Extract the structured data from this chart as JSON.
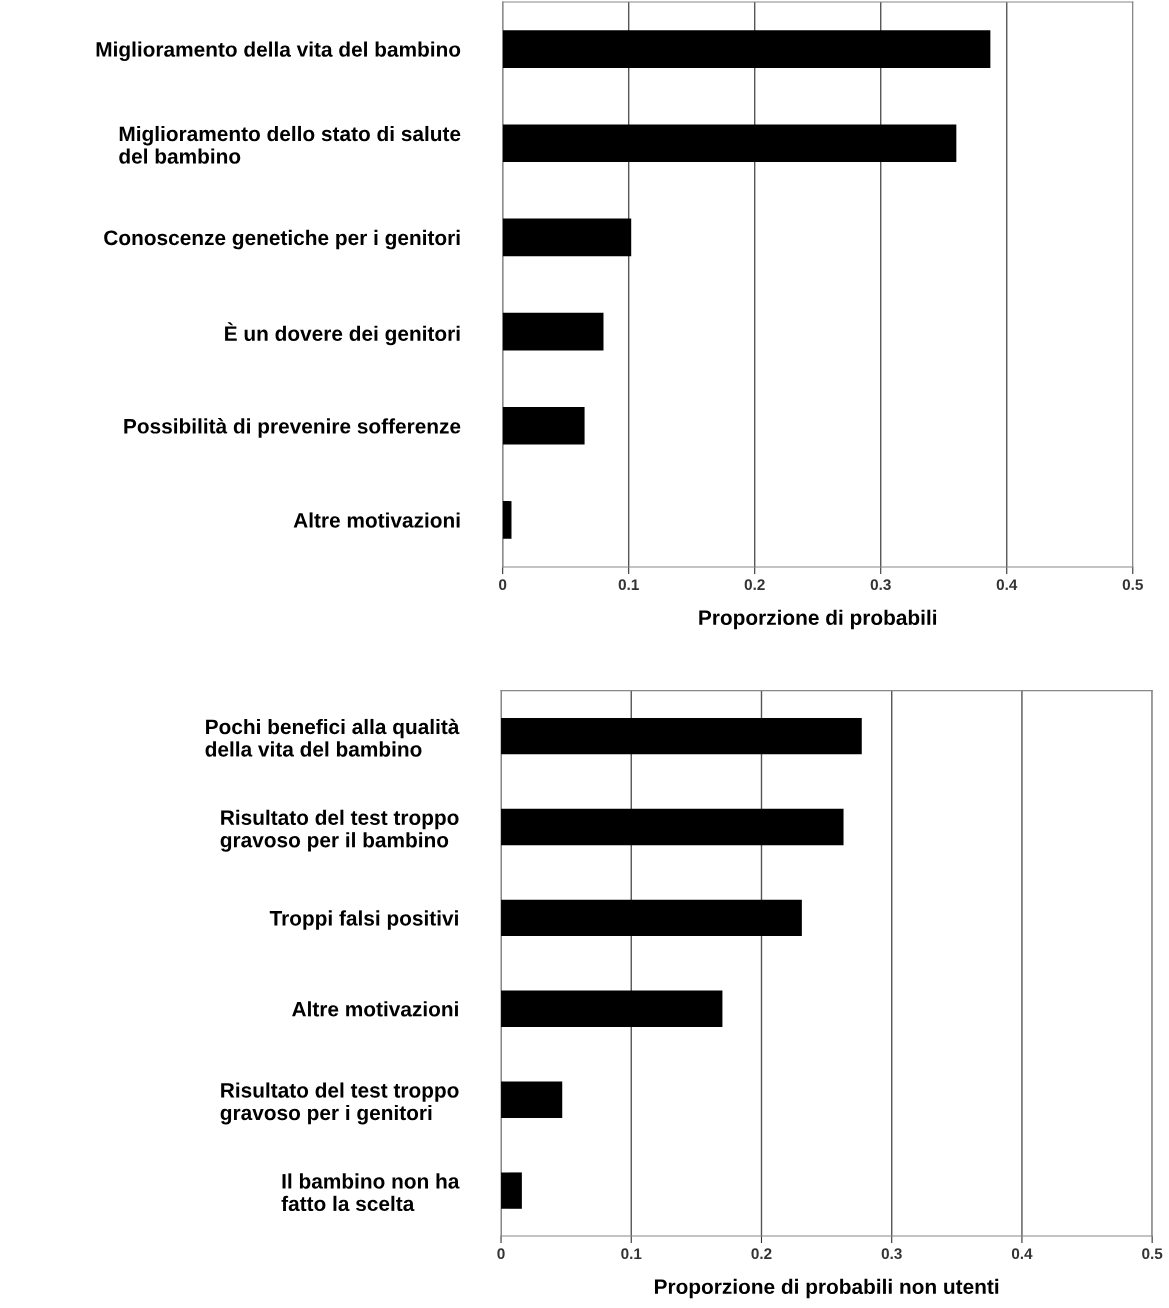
{
  "chart_data": [
    {
      "type": "bar",
      "orientation": "horizontal",
      "xlabel": "Proporzione di probabili",
      "categories": [
        "Miglioramento della vita del bambino",
        "Miglioramento dello stato di salute\ndel bambino",
        "Conoscenze genetiche per i genitori",
        "È un dovere dei genitori",
        "Possibilità di prevenire sofferenze",
        "Altre motivazioni"
      ],
      "values": [
        0.387,
        0.36,
        0.102,
        0.08,
        0.065,
        0.007
      ],
      "color": "#000000",
      "xlim": [
        0,
        0.5
      ],
      "xticks": [
        0,
        0.1,
        0.2,
        0.3,
        0.4,
        0.5
      ],
      "grid": "x"
    },
    {
      "type": "bar",
      "orientation": "horizontal",
      "xlabel": "Proporzione di probabili non utenti",
      "categories": [
        "Pochi benefici alla qualità\ndella vita del bambino",
        "Risultato del test troppo\ngravoso per il bambino",
        "Troppi falsi positivi",
        "Altre motivazioni",
        "Risultato del test troppo\ngravoso per i genitori",
        "Il bambino non ha\nfatto la scelta"
      ],
      "values": [
        0.277,
        0.263,
        0.231,
        0.17,
        0.047,
        0.016
      ],
      "color": "#000000",
      "xlim": [
        0,
        0.5
      ],
      "xticks": [
        0,
        0.1,
        0.2,
        0.3,
        0.4,
        0.5
      ],
      "grid": "x"
    }
  ]
}
